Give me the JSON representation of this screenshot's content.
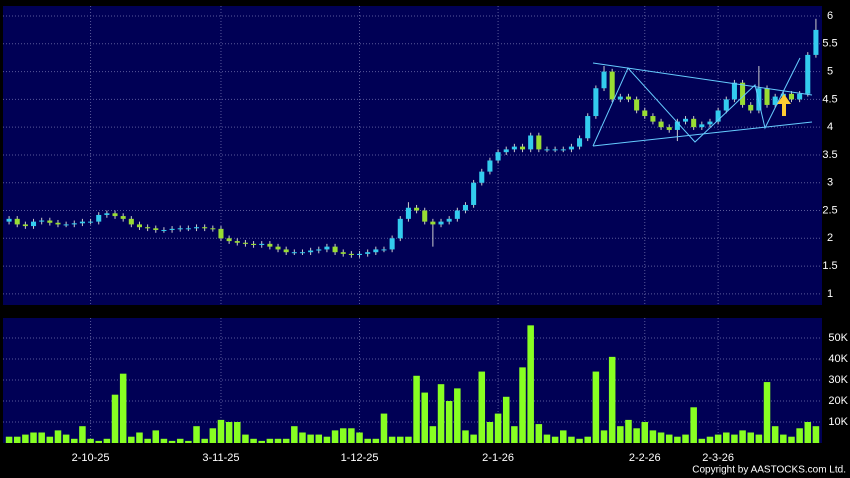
{
  "chart_data": {
    "type": "candlestick",
    "categories": [
      null,
      null,
      null,
      null,
      null,
      null,
      null,
      null,
      null,
      null,
      "2-10-25",
      null,
      null,
      null,
      null,
      null,
      null,
      null,
      null,
      null,
      null,
      null,
      null,
      null,
      null,
      null,
      "3-11-25",
      null,
      null,
      null,
      null,
      null,
      null,
      null,
      null,
      null,
      null,
      null,
      null,
      null,
      null,
      null,
      null,
      "1-12-25",
      null,
      null,
      null,
      null,
      null,
      null,
      null,
      null,
      null,
      null,
      null,
      null,
      null,
      null,
      null,
      null,
      "2-1-26",
      null,
      null,
      null,
      null,
      null,
      null,
      null,
      null,
      null,
      null,
      null,
      null,
      null,
      null,
      null,
      null,
      null,
      "2-2-26",
      null,
      null,
      null,
      null,
      null,
      null,
      null,
      null,
      "2-3-26",
      null,
      null,
      null,
      null,
      null,
      null,
      null,
      null,
      null,
      null,
      null,
      null
    ],
    "open": [
      2.3,
      2.35,
      2.25,
      2.22,
      2.3,
      2.32,
      2.28,
      2.25,
      2.25,
      2.27,
      2.3,
      2.3,
      2.42,
      2.45,
      2.4,
      2.35,
      2.25,
      2.2,
      2.18,
      2.15,
      2.15,
      2.17,
      2.18,
      2.18,
      2.2,
      2.18,
      2.17,
      2.0,
      1.95,
      1.92,
      1.9,
      1.88,
      1.9,
      1.85,
      1.8,
      1.75,
      1.75,
      1.75,
      1.78,
      1.8,
      1.85,
      1.75,
      1.72,
      1.7,
      1.72,
      1.75,
      1.8,
      1.8,
      2.0,
      2.35,
      2.55,
      2.5,
      2.3,
      2.25,
      2.3,
      2.35,
      2.5,
      2.6,
      3.0,
      3.2,
      3.4,
      3.55,
      3.6,
      3.65,
      3.6,
      3.85,
      3.6,
      3.6,
      3.6,
      3.6,
      3.65,
      3.8,
      4.2,
      4.7,
      5.0,
      4.5,
      4.55,
      4.5,
      4.3,
      4.2,
      4.1,
      4.0,
      3.95,
      4.1,
      4.15,
      4.0,
      4.05,
      4.1,
      4.3,
      4.5,
      4.8,
      4.4,
      4.3,
      4.7,
      4.4,
      4.55,
      4.6,
      4.5,
      4.6,
      5.3
    ],
    "high": [
      2.4,
      2.4,
      2.3,
      2.35,
      2.37,
      2.37,
      2.33,
      2.3,
      2.32,
      2.35,
      2.35,
      2.47,
      2.5,
      2.5,
      2.45,
      2.4,
      2.3,
      2.25,
      2.23,
      2.2,
      2.22,
      2.23,
      2.23,
      2.25,
      2.25,
      2.23,
      2.22,
      2.05,
      2.0,
      1.97,
      1.95,
      1.95,
      1.95,
      1.9,
      1.85,
      1.8,
      1.8,
      1.83,
      1.85,
      1.9,
      1.9,
      1.8,
      1.77,
      1.77,
      1.8,
      1.85,
      1.85,
      2.05,
      2.4,
      2.65,
      2.6,
      2.55,
      2.35,
      2.35,
      2.4,
      2.55,
      2.65,
      3.05,
      3.25,
      3.45,
      3.6,
      3.65,
      3.7,
      3.7,
      3.9,
      3.9,
      3.65,
      3.65,
      3.65,
      3.7,
      3.85,
      4.25,
      4.75,
      5.1,
      5.05,
      4.6,
      4.6,
      4.55,
      4.35,
      4.25,
      4.15,
      4.05,
      4.15,
      4.2,
      4.2,
      4.1,
      4.15,
      4.35,
      4.55,
      4.85,
      4.85,
      4.45,
      5.1,
      4.75,
      4.6,
      4.65,
      4.65,
      4.65,
      5.35,
      5.95
    ],
    "low": [
      2.25,
      2.2,
      2.17,
      2.17,
      2.25,
      2.23,
      2.2,
      2.2,
      2.2,
      2.22,
      2.25,
      2.25,
      2.37,
      2.35,
      2.3,
      2.2,
      2.15,
      2.13,
      2.1,
      2.1,
      2.1,
      2.12,
      2.13,
      2.13,
      2.13,
      2.12,
      1.95,
      1.9,
      1.87,
      1.85,
      1.83,
      1.83,
      1.8,
      1.75,
      1.7,
      1.7,
      1.7,
      1.7,
      1.73,
      1.75,
      1.7,
      1.67,
      1.65,
      1.65,
      1.67,
      1.7,
      1.75,
      1.75,
      1.95,
      2.3,
      2.45,
      2.25,
      1.85,
      2.2,
      2.25,
      2.3,
      2.45,
      2.55,
      2.95,
      3.15,
      3.35,
      3.5,
      3.55,
      3.55,
      3.55,
      3.55,
      3.55,
      3.55,
      3.55,
      3.55,
      3.6,
      3.75,
      4.15,
      4.65,
      4.45,
      4.45,
      4.45,
      4.25,
      4.15,
      4.05,
      3.95,
      3.9,
      3.75,
      4.05,
      3.95,
      3.95,
      4.0,
      4.05,
      4.25,
      4.45,
      4.35,
      4.25,
      4.25,
      4.35,
      4.35,
      4.5,
      4.45,
      4.45,
      4.55,
      5.25
    ],
    "close": [
      2.35,
      2.25,
      2.22,
      2.3,
      2.32,
      2.28,
      2.25,
      2.25,
      2.27,
      2.3,
      2.3,
      2.42,
      2.45,
      2.4,
      2.35,
      2.25,
      2.2,
      2.18,
      2.15,
      2.15,
      2.17,
      2.18,
      2.18,
      2.2,
      2.18,
      2.17,
      2.0,
      1.95,
      1.92,
      1.9,
      1.88,
      1.9,
      1.85,
      1.8,
      1.75,
      1.75,
      1.75,
      1.78,
      1.8,
      1.85,
      1.75,
      1.72,
      1.7,
      1.72,
      1.75,
      1.8,
      1.8,
      2.0,
      2.35,
      2.55,
      2.5,
      2.3,
      2.25,
      2.3,
      2.35,
      2.5,
      2.6,
      3.0,
      3.2,
      3.4,
      3.55,
      3.6,
      3.65,
      3.6,
      3.85,
      3.6,
      3.6,
      3.6,
      3.6,
      3.65,
      3.8,
      4.2,
      4.7,
      5.0,
      4.5,
      4.55,
      4.5,
      4.3,
      4.2,
      4.1,
      4.0,
      3.95,
      4.1,
      4.15,
      4.0,
      4.05,
      4.1,
      4.3,
      4.5,
      4.8,
      4.4,
      4.3,
      4.7,
      4.4,
      4.55,
      4.6,
      4.5,
      4.6,
      5.3,
      5.75
    ],
    "color_up": "#33ccee",
    "color_down": "#99dd33",
    "ylim": [
      0.8,
      6.18
    ],
    "yticks": [
      1,
      1.5,
      2,
      2.5,
      3,
      3.5,
      4,
      4.5,
      5,
      5.5,
      6
    ],
    "grid": true,
    "volume": {
      "values": [
        3000,
        3000,
        4000,
        5000,
        5000,
        3000,
        6000,
        4000,
        2000,
        8000,
        2000,
        1000,
        2000,
        23000,
        33000,
        3000,
        5000,
        2000,
        6000,
        2000,
        1000,
        2000,
        1000,
        8000,
        2000,
        7000,
        11000,
        10000,
        10000,
        4000,
        2000,
        1000,
        2000,
        2000,
        2000,
        8000,
        5000,
        4000,
        4000,
        3000,
        6000,
        7000,
        7000,
        5000,
        2000,
        2000,
        14000,
        3000,
        3000,
        3000,
        32000,
        24000,
        8000,
        28000,
        20000,
        26000,
        6000,
        4000,
        34000,
        10000,
        14000,
        22000,
        8000,
        36000,
        56000,
        9000,
        4000,
        3000,
        6000,
        3000,
        2000,
        3000,
        34000,
        6000,
        41000,
        8000,
        11000,
        7000,
        10000,
        6000,
        5000,
        4000,
        3000,
        4000,
        17000,
        2000,
        3000,
        4000,
        5000,
        4000,
        6000,
        5000,
        4000,
        29000,
        8000,
        4000,
        3000,
        7000,
        10000,
        8000
      ],
      "color": "#88ff22",
      "ylim": [
        0,
        59500
      ],
      "yticks": [
        {
          "value": 10000,
          "label": "10K"
        },
        {
          "value": 20000,
          "label": "20K"
        },
        {
          "value": 30000,
          "label": "30K"
        },
        {
          "value": 40000,
          "label": "40K"
        },
        {
          "value": 50000,
          "label": "50K"
        }
      ]
    }
  },
  "footer": "Copyright by AASTOCKS.com Ltd."
}
